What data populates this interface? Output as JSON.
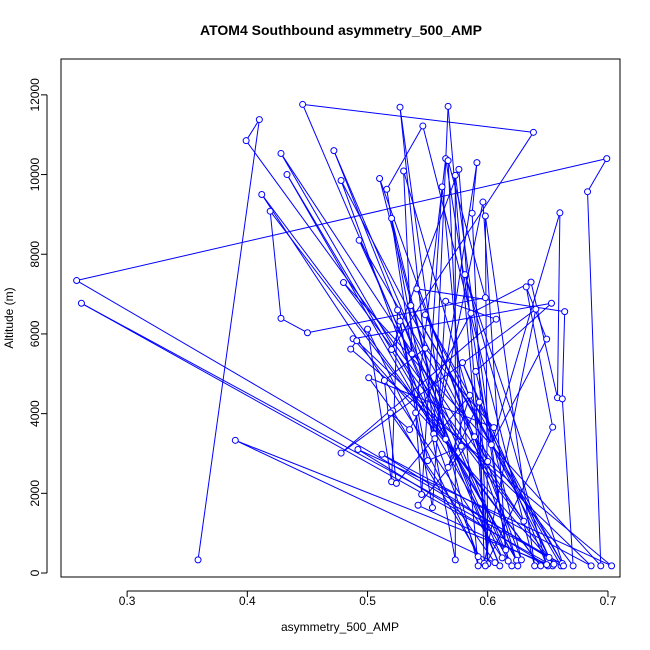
{
  "chart_data": {
    "type": "line",
    "title": "ATOM4 Southbound asymmetry_500_AMP",
    "xlabel": "asymmetry_500_AMP",
    "ylabel": "Altitude (m)",
    "xlim": [
      0.245,
      0.71
    ],
    "ylim": [
      -100,
      12900
    ],
    "x_ticks": [
      0.3,
      0.4,
      0.5,
      0.6,
      0.7
    ],
    "x_tick_labels": [
      "0.3",
      "0.4",
      "0.5",
      "0.6",
      "0.7"
    ],
    "y_ticks": [
      0,
      2000,
      4000,
      6000,
      8000,
      10000,
      12000
    ],
    "y_tick_labels": [
      "0",
      "2000",
      "4000",
      "6000",
      "8000",
      "10000",
      "12000"
    ],
    "grid": false,
    "legend": "none",
    "colors": {
      "series": "#0000ff",
      "frame": "#000000"
    },
    "series": [
      {
        "points": [
          [
            0.359,
            330
          ],
          [
            0.41,
            11380
          ],
          [
            0.399,
            10850
          ],
          [
            0.63,
            1300
          ],
          [
            0.428,
            10530
          ],
          [
            0.624,
            320
          ],
          [
            0.433,
            10000
          ],
          [
            0.62,
            180
          ],
          [
            0.472,
            10600
          ],
          [
            0.61,
            180
          ],
          [
            0.446,
            11760
          ],
          [
            0.638,
            11060
          ],
          [
            0.52,
            5610
          ],
          [
            0.576,
            10130
          ],
          [
            0.6,
            230
          ],
          [
            0.567,
            11710
          ],
          [
            0.555,
            3490
          ],
          [
            0.527,
            11690
          ],
          [
            0.565,
            3360
          ],
          [
            0.52,
            8900
          ],
          [
            0.573,
            330
          ],
          [
            0.573,
            9980
          ],
          [
            0.615,
            580
          ],
          [
            0.596,
            9310
          ],
          [
            0.556,
            3370
          ],
          [
            0.591,
            10300
          ],
          [
            0.587,
            9030
          ],
          [
            0.6,
            230
          ],
          [
            0.598,
            8960
          ],
          [
            0.639,
            180
          ],
          [
            0.546,
            11220
          ],
          [
            0.516,
            9630
          ],
          [
            0.537,
            5500
          ],
          [
            0.53,
            10090
          ],
          [
            0.625,
            180
          ],
          [
            0.51,
            9900
          ],
          [
            0.592,
            180
          ],
          [
            0.562,
            9690
          ],
          [
            0.545,
            1970
          ],
          [
            0.54,
            4020
          ],
          [
            0.565,
            10400
          ],
          [
            0.617,
            300
          ],
          [
            0.525,
            6600
          ],
          [
            0.52,
            2290
          ],
          [
            0.5,
            6120
          ],
          [
            0.592,
            410
          ],
          [
            0.478,
            9850
          ],
          [
            0.6,
            2800
          ],
          [
            0.493,
            8350
          ],
          [
            0.612,
            380
          ],
          [
            0.412,
            9500
          ],
          [
            0.644,
            180
          ],
          [
            0.419,
            9080
          ],
          [
            0.428,
            6390
          ],
          [
            0.45,
            6030
          ],
          [
            0.598,
            6910
          ],
          [
            0.567,
            10350
          ],
          [
            0.578,
            3180
          ],
          [
            0.55,
            2820
          ],
          [
            0.527,
            6320
          ],
          [
            0.554,
            1640
          ],
          [
            0.565,
            6820
          ],
          [
            0.607,
            6370
          ],
          [
            0.478,
            3010
          ],
          [
            0.64,
            6620
          ],
          [
            0.597,
            240
          ],
          [
            0.593,
            4290
          ],
          [
            0.567,
            2650
          ],
          [
            0.585,
            4460
          ],
          [
            0.524,
            2250
          ],
          [
            0.514,
            4830
          ],
          [
            0.548,
            5640
          ],
          [
            0.605,
            3650
          ],
          [
            0.501,
            4900
          ],
          [
            0.521,
            4070
          ],
          [
            0.598,
            180
          ],
          [
            0.654,
            3660
          ],
          [
            0.632,
            7180
          ],
          [
            0.649,
            5870
          ],
          [
            0.603,
            3220
          ],
          [
            0.66,
            9040
          ],
          [
            0.658,
            4400
          ],
          [
            0.636,
            7300
          ],
          [
            0.586,
            6520
          ],
          [
            0.535,
            3600
          ],
          [
            0.519,
            4020
          ],
          [
            0.606,
            260
          ],
          [
            0.39,
            3330
          ],
          [
            0.654,
            180
          ],
          [
            0.262,
            6770
          ],
          [
            0.662,
            220
          ],
          [
            0.258,
            7340
          ],
          [
            0.699,
            10400
          ],
          [
            0.683,
            9570
          ],
          [
            0.694,
            180
          ],
          [
            0.48,
            7290
          ],
          [
            0.655,
            220
          ],
          [
            0.488,
            5880
          ],
          [
            0.653,
            6770
          ],
          [
            0.59,
            5060
          ],
          [
            0.628,
            330
          ],
          [
            0.541,
            7130
          ],
          [
            0.664,
            6560
          ],
          [
            0.662,
            4370
          ],
          [
            0.671,
            180
          ],
          [
            0.589,
            3420
          ],
          [
            0.542,
            1700
          ],
          [
            0.65,
            180
          ],
          [
            0.492,
            3100
          ],
          [
            0.703,
            180
          ],
          [
            0.486,
            5620
          ],
          [
            0.491,
            5830
          ],
          [
            0.686,
            180
          ],
          [
            0.512,
            2980
          ],
          [
            0.661,
            180
          ],
          [
            0.536,
            6710
          ],
          [
            0.662,
            240
          ],
          [
            0.548,
            6480
          ],
          [
            0.651,
            390
          ],
          [
            0.579,
            5280
          ],
          [
            0.649,
            210
          ],
          [
            0.581,
            7490
          ],
          [
            0.663,
            180
          ]
        ]
      }
    ]
  }
}
